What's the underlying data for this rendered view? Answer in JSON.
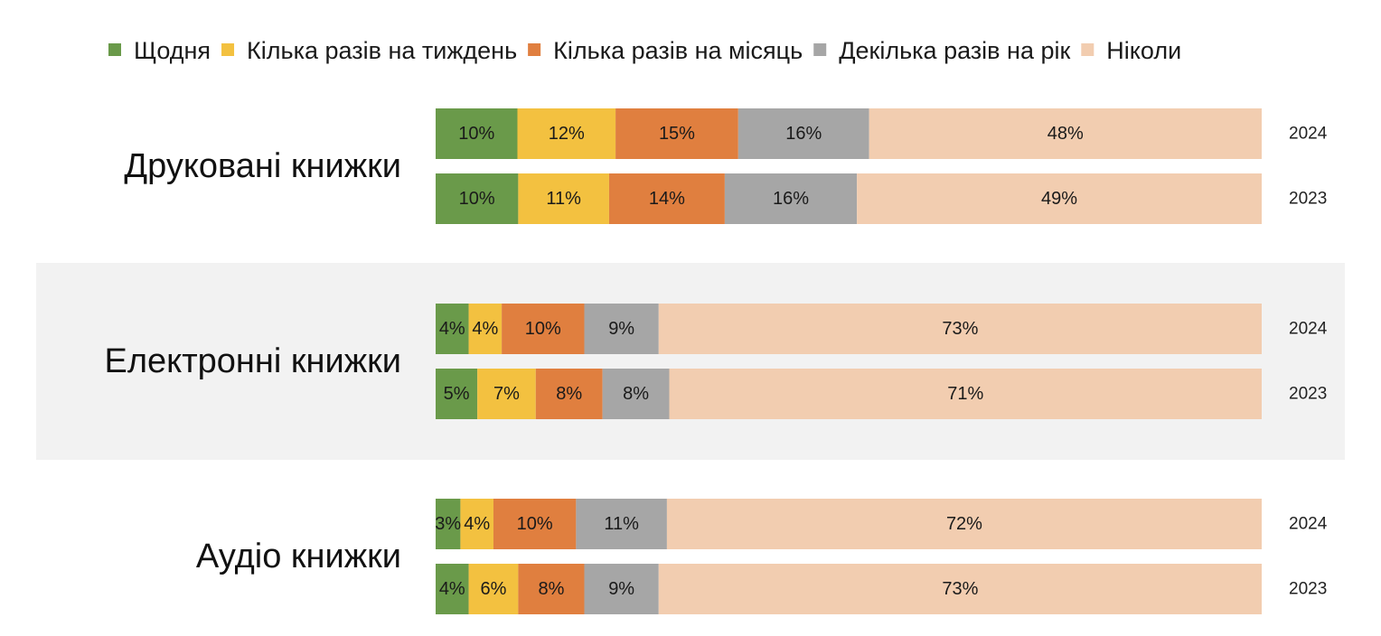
{
  "chart_data": {
    "type": "bar",
    "orientation": "horizontal",
    "stacked": true,
    "normalized": true,
    "unit": "%",
    "legend": {
      "placement": "top",
      "entries": [
        {
          "name": "Щодня",
          "color": "#6a9a4a"
        },
        {
          "name": "Кілька разів на тиждень",
          "color": "#f3c140"
        },
        {
          "name": "Кілька разів на місяць",
          "color": "#e07f3f"
        },
        {
          "name": "Декілька разів на рік",
          "color": "#a6a6a6"
        },
        {
          "name": "Ніколи",
          "color": "#f2cdb0"
        }
      ]
    },
    "groups": [
      {
        "label": "Друковані книжки",
        "shaded": false,
        "bars": [
          {
            "year": "2024",
            "values": [
              10,
              12,
              15,
              16,
              48
            ],
            "labels": [
              "10%",
              "12%",
              "15%",
              "16%",
              "48%"
            ]
          },
          {
            "year": "2023",
            "values": [
              10,
              11,
              14,
              16,
              49
            ],
            "labels": [
              "10%",
              "11%",
              "14%",
              "16%",
              "49%"
            ]
          }
        ]
      },
      {
        "label": "Електронні книжки",
        "shaded": true,
        "bars": [
          {
            "year": "2024",
            "values": [
              4,
              4,
              10,
              9,
              73
            ],
            "labels": [
              "4%",
              "4%",
              "10%",
              "9%",
              "73%"
            ]
          },
          {
            "year": "2023",
            "values": [
              5,
              7,
              8,
              8,
              71
            ],
            "labels": [
              "5%",
              "7%",
              "8%",
              "8%",
              "71%"
            ]
          }
        ]
      },
      {
        "label": "Аудіо книжки",
        "shaded": false,
        "bars": [
          {
            "year": "2024",
            "values": [
              3,
              4,
              10,
              11,
              72
            ],
            "labels": [
              "3%",
              "4%",
              "10%",
              "11%",
              "72%"
            ]
          },
          {
            "year": "2023",
            "values": [
              4,
              6,
              8,
              9,
              73
            ],
            "labels": [
              "4%",
              "6%",
              "8%",
              "9%",
              "73%"
            ]
          }
        ]
      }
    ]
  },
  "colors": {
    "background": "#ffffff",
    "band_shade": "#f2f2f2"
  }
}
